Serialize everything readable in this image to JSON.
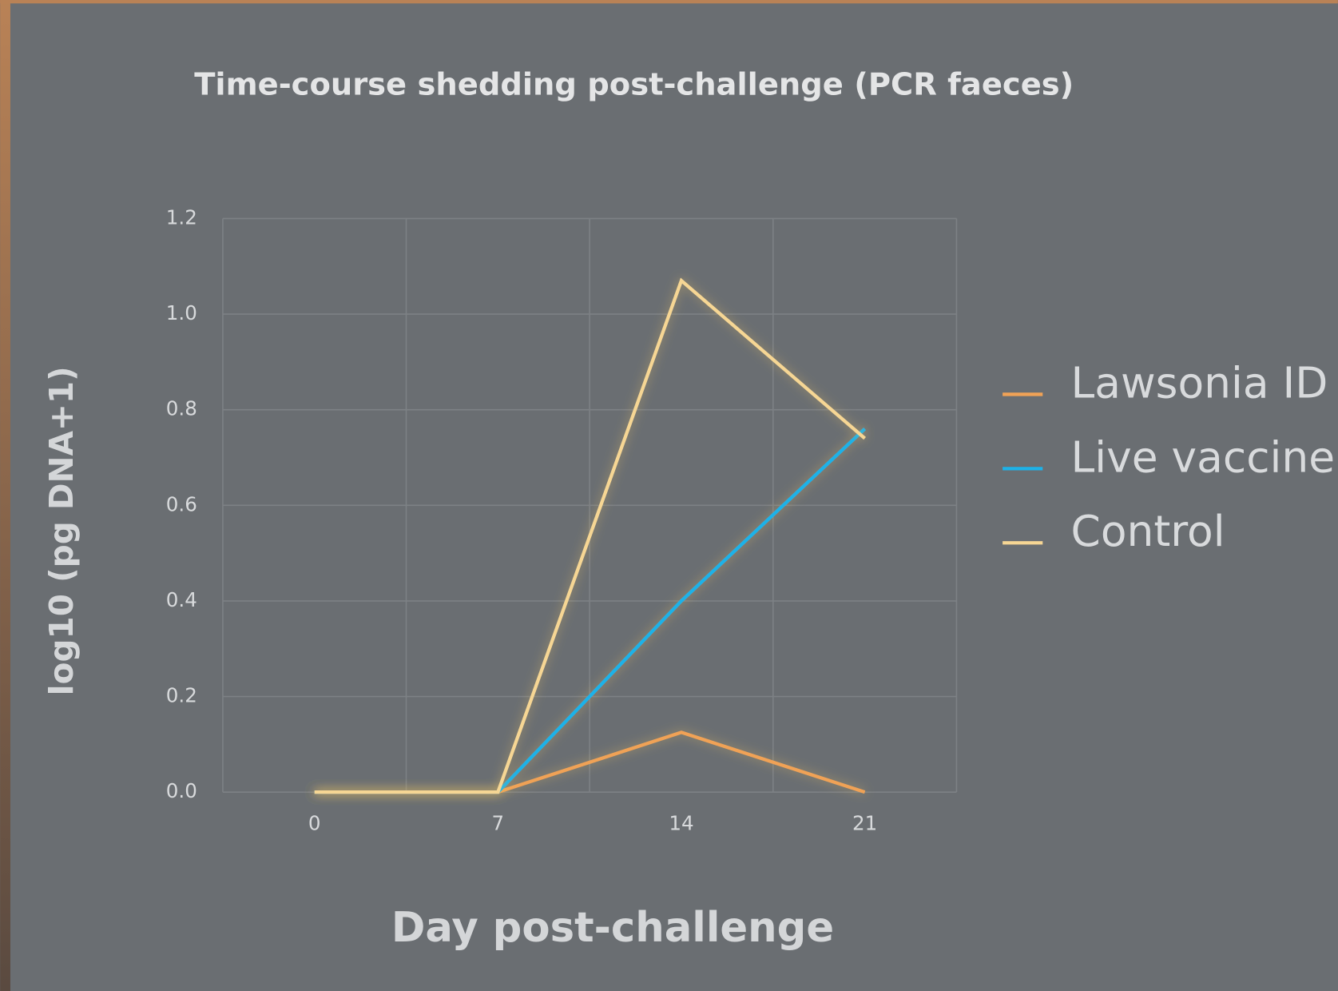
{
  "chart_data": {
    "type": "line",
    "title": "Time-course shedding post-challenge (PCR faeces)",
    "x_label": "Day post-challenge",
    "y_label": "log10 (pg DNA+1)",
    "categories": [
      "0",
      "7",
      "14",
      "21"
    ],
    "series": [
      {
        "name": "Lawsonia ID",
        "color": "#f0a256",
        "values": [
          0,
          0,
          0.125,
          0
        ]
      },
      {
        "name": "Live vaccine",
        "color": "#1db2e8",
        "values": [
          0,
          0,
          0.4,
          0.76
        ]
      },
      {
        "name": "Control",
        "color": "#f6d694",
        "values": [
          0,
          0,
          1.07,
          0.74
        ]
      }
    ],
    "ylim": [
      0,
      1.2
    ],
    "yticks": [
      {
        "value": 0,
        "label": "0.0"
      },
      0.2,
      0.4,
      0.6,
      0.8,
      {
        "value": 1.0,
        "label": "1.0"
      },
      1.2
    ],
    "grid": true,
    "legend": "right"
  }
}
